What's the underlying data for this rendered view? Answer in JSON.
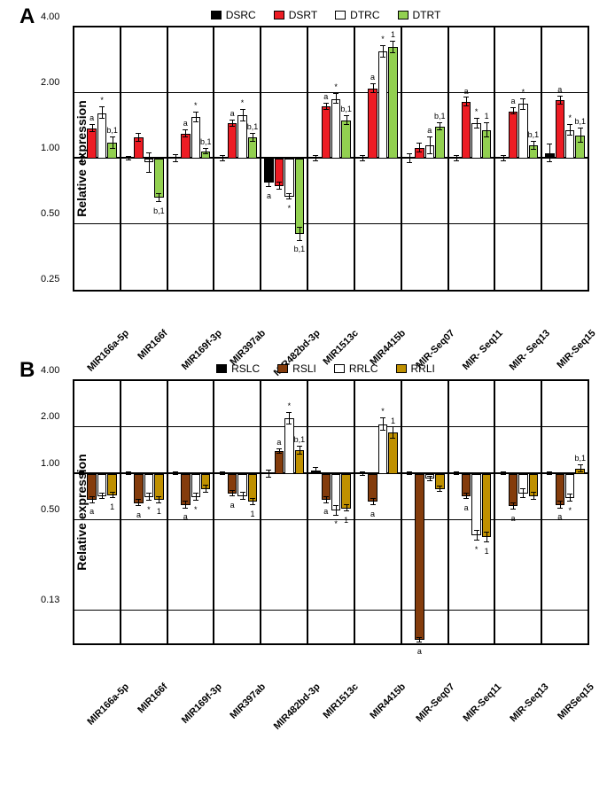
{
  "chartA": {
    "type": "bar",
    "panel": "A",
    "ylabel": "Relative expression",
    "yscale": "log",
    "ylim": [
      0.25,
      4.0
    ],
    "yticks": [
      0.25,
      0.5,
      1.0,
      2.0,
      4.0
    ],
    "ytick_labels": [
      "0.25",
      "0.50",
      "1.00",
      "2.00",
      "4.00"
    ],
    "baseline": 1.0,
    "legend": [
      "DSRC",
      "DSRT",
      "DTRC",
      "DTRT"
    ],
    "series_colors": [
      "#000000",
      "#ed1c24",
      "#ffffff",
      "#92d050"
    ],
    "categories": [
      "MIR166a-5p",
      "MIR166f",
      "MIR169f-3p",
      "MIR397ab",
      "MIR482bd-3p",
      "MIR1513c",
      "MIR4415b",
      "MIR-Seq07",
      "MIR- Seq11",
      "MIR- Seq13",
      "MIR-Seq15"
    ],
    "data": [
      {
        "vals": [
          1.0,
          1.38,
          1.62,
          1.18
        ],
        "err": [
          0.04,
          0.05,
          0.1,
          0.07
        ],
        "ann": [
          "",
          "a",
          "*",
          "b,1"
        ]
      },
      {
        "vals": [
          1.0,
          1.25,
          0.96,
          0.66
        ],
        "err": [
          0.02,
          0.05,
          0.1,
          0.03
        ],
        "ann": [
          "",
          "",
          "",
          "b,1"
        ]
      },
      {
        "vals": [
          1.0,
          1.3,
          1.55,
          1.08
        ],
        "err": [
          0.04,
          0.05,
          0.08,
          0.03
        ],
        "ann": [
          "",
          "a",
          "*",
          "b,1"
        ]
      },
      {
        "vals": [
          1.0,
          1.45,
          1.58,
          1.25
        ],
        "err": [
          0.03,
          0.05,
          0.1,
          0.05
        ],
        "ann": [
          "",
          "a",
          "*",
          "b,1"
        ]
      },
      {
        "vals": [
          0.78,
          0.75,
          0.67,
          0.45
        ],
        "err": [
          0.04,
          0.03,
          0.02,
          0.03
        ],
        "ann": [
          "a",
          "",
          "*",
          "b,1"
        ]
      },
      {
        "vals": [
          1.0,
          1.73,
          1.88,
          1.5
        ],
        "err": [
          0.03,
          0.06,
          0.1,
          0.07
        ],
        "ann": [
          "",
          "a",
          "*",
          "b,1"
        ]
      },
      {
        "vals": [
          1.0,
          2.1,
          3.1,
          3.25
        ],
        "err": [
          0.03,
          0.1,
          0.2,
          0.2
        ],
        "ann": [
          "",
          "a",
          "*",
          "1"
        ]
      },
      {
        "vals": [
          1.0,
          1.12,
          1.15,
          1.4
        ],
        "err": [
          0.05,
          0.05,
          0.1,
          0.05
        ],
        "ann": [
          "",
          "",
          "a",
          "b,1"
        ]
      },
      {
        "vals": [
          1.0,
          1.82,
          1.45,
          1.35
        ],
        "err": [
          0.03,
          0.08,
          0.08,
          0.1
        ],
        "ann": [
          "",
          "a",
          "*",
          "1"
        ]
      },
      {
        "vals": [
          1.0,
          1.65,
          1.78,
          1.15
        ],
        "err": [
          0.03,
          0.05,
          0.1,
          0.05
        ],
        "ann": [
          "",
          "a",
          "*",
          "b,1"
        ]
      },
      {
        "vals": [
          1.06,
          1.85,
          1.35,
          1.28
        ],
        "err": [
          0.1,
          0.08,
          0.08,
          0.1
        ],
        "ann": [
          "",
          "a",
          "*",
          "b,1"
        ]
      }
    ],
    "background_color": "#ffffff",
    "grid_color": "#000000",
    "bar_border": "#000000",
    "label_fontsize": 11
  },
  "chartB": {
    "type": "bar",
    "panel": "B",
    "ylabel": "Relative expression",
    "yscale": "log",
    "ylim": [
      0.08,
      4.0
    ],
    "yticks": [
      0.13,
      0.5,
      1.0,
      2.0,
      4.0
    ],
    "ytick_labels": [
      "0.13",
      "0.50",
      "1.00",
      "2.00",
      "4.00"
    ],
    "baseline": 1.0,
    "legend": [
      "RSLC",
      "RSLI",
      "RRLC",
      "RRLI"
    ],
    "series_colors": [
      "#000000",
      "#843c0c",
      "#ffffff",
      "#bf9000"
    ],
    "categories": [
      "MIR166a-5p",
      "MIR166f",
      "MIR169f-3p",
      "MIR397ab",
      "MIR482bd-3p",
      "MIR1513c",
      "MIR4415b",
      "MIR-Seq07",
      "MIR-Seq11",
      "MIR-Seq13",
      "MIRSeq15"
    ],
    "data": [
      {
        "vals": [
          1.0,
          0.68,
          0.72,
          0.73
        ],
        "err": [
          0.02,
          0.03,
          0.03,
          0.03
        ],
        "ann": [
          "",
          "a",
          "",
          "1"
        ]
      },
      {
        "vals": [
          1.0,
          0.65,
          0.71,
          0.68
        ],
        "err": [
          0.02,
          0.03,
          0.04,
          0.03
        ],
        "ann": [
          "",
          "a",
          "*",
          "1"
        ]
      },
      {
        "vals": [
          1.0,
          0.63,
          0.71,
          0.8
        ],
        "err": [
          0.02,
          0.03,
          0.04,
          0.04
        ],
        "ann": [
          "",
          "a",
          "*",
          ""
        ]
      },
      {
        "vals": [
          1.0,
          0.75,
          0.72,
          0.66
        ],
        "err": [
          0.02,
          0.03,
          0.04,
          0.03
        ],
        "ann": [
          "",
          "a",
          "",
          "1"
        ]
      },
      {
        "vals": [
          1.0,
          1.4,
          2.3,
          1.42
        ],
        "err": [
          0.05,
          0.05,
          0.2,
          0.08
        ],
        "ann": [
          "",
          "a",
          "*",
          "b,1"
        ]
      },
      {
        "vals": [
          1.05,
          0.68,
          0.58,
          0.6
        ],
        "err": [
          0.05,
          0.03,
          0.04,
          0.03
        ],
        "ann": [
          "",
          "a",
          "*",
          "1"
        ]
      },
      {
        "vals": [
          1.0,
          0.66,
          2.1,
          1.85
        ],
        "err": [
          0.03,
          0.03,
          0.2,
          0.15
        ],
        "ann": [
          "",
          "a",
          "*",
          "1"
        ]
      },
      {
        "vals": [
          1.0,
          0.084,
          0.93,
          0.8
        ],
        "err": [
          0.02,
          0.003,
          0.03,
          0.03
        ],
        "ann": [
          "",
          "a",
          "",
          ""
        ]
      },
      {
        "vals": [
          1.0,
          0.72,
          0.4,
          0.39
        ],
        "err": [
          0.02,
          0.03,
          0.03,
          0.03
        ],
        "ann": [
          "",
          "a",
          "*",
          "1"
        ]
      },
      {
        "vals": [
          1.0,
          0.62,
          0.75,
          0.72
        ],
        "err": [
          0.02,
          0.03,
          0.05,
          0.04
        ],
        "ann": [
          "",
          "a",
          "",
          ""
        ]
      },
      {
        "vals": [
          1.0,
          0.63,
          0.7,
          1.08
        ],
        "err": [
          0.02,
          0.03,
          0.04,
          0.06
        ],
        "ann": [
          "",
          "a",
          "*",
          "b,1"
        ]
      }
    ],
    "background_color": "#ffffff",
    "grid_color": "#000000",
    "bar_border": "#000000",
    "label_fontsize": 11
  }
}
